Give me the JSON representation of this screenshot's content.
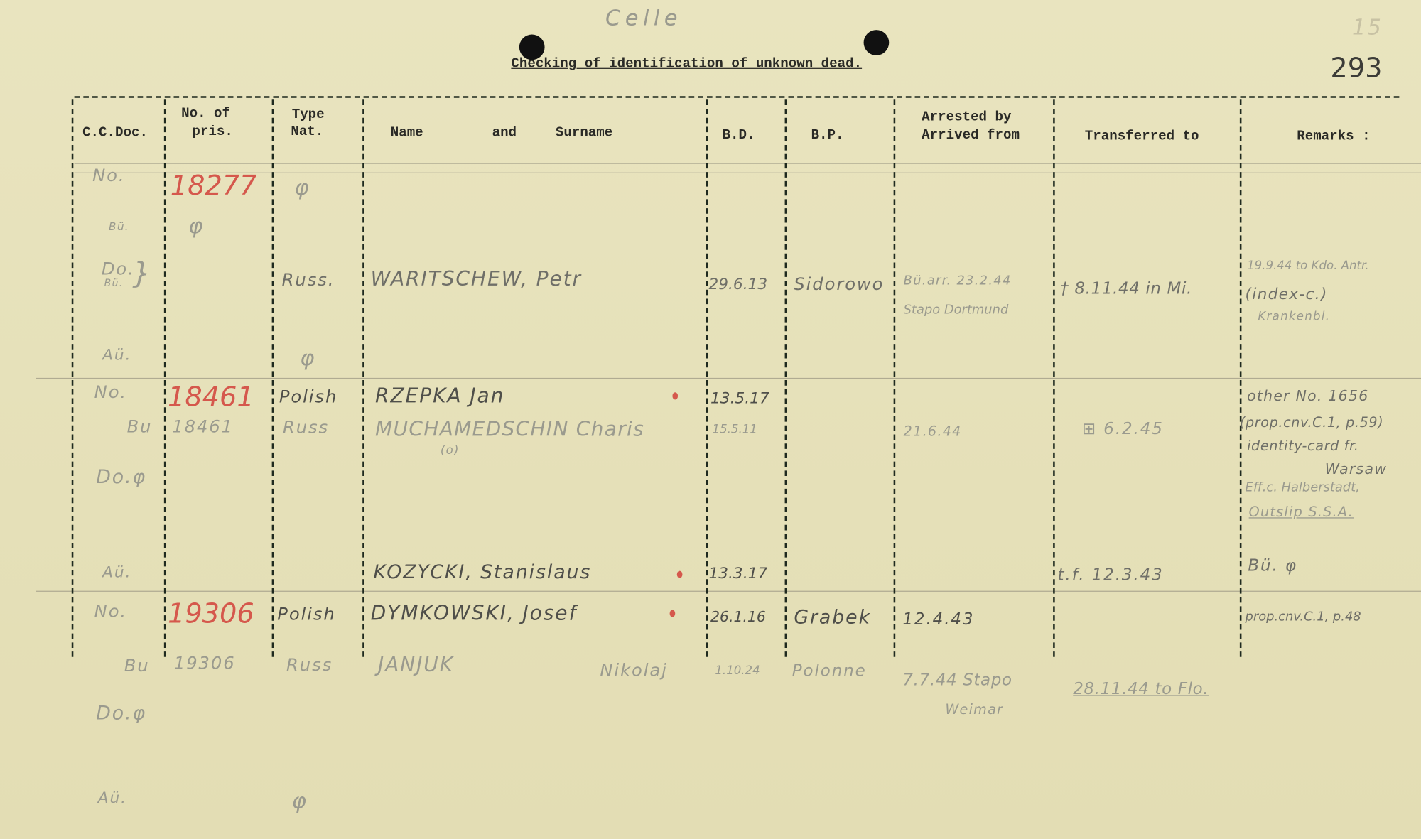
{
  "document": {
    "annotation_top": "Celle",
    "corner_number": "15",
    "page_number": "293",
    "title": "Checking of identification of unknown dead."
  },
  "columns": {
    "cc_doc": "C.C.Doc.",
    "no_of": "No. of",
    "pris": "pris.",
    "type": "Type",
    "nat": "Nat.",
    "name": "Name",
    "and": "and",
    "surname": "Surname",
    "bd": "B.D.",
    "bp": "B.P.",
    "arrested_by": "Arrested by",
    "arrived_from": "Arrived from",
    "transferred_to": "Transferred to",
    "remarks": "Remarks :"
  },
  "entries": [
    {
      "no_label": "No.",
      "no_value": "18277",
      "type_no": "φ",
      "bu_label": "Bü.",
      "bu_value": "φ",
      "do_label": "Do.",
      "do_sub": "Bü.",
      "do_brace": "}",
      "nat": "Russ.",
      "name": "WARITSCHEW, Petr",
      "bd": "29.6.13",
      "bp": "Sidorowo",
      "arrested_1": "Bü.arr. 23.2.44",
      "arrested_2": "Stapo Dortmund",
      "transferred": "† 8.11.44 in Mi.",
      "remarks": [
        "19.9.44 to Kdo. Antr.",
        "(index-c.)",
        "Krankenbl."
      ],
      "au_label": "Aü.",
      "au_value": "φ"
    },
    {
      "no_label": "No.",
      "no_value": "18461",
      "nat": "Polish",
      "name": "RZEPKA Jan",
      "bd": "13.5.17",
      "bu_label": "Bu",
      "bu_value": "18461",
      "bu_nat": "Russ",
      "bu_name": "MUCHAMEDSCHIN Charis",
      "bu_name_note": "(o)",
      "bu_bd": "15.5.11",
      "bu_arrived": "21.6.44",
      "bu_transferred": "⊞ 6.2.45",
      "remarks": [
        "other No. 1656",
        "(prop.cnv.C.1, p.59)",
        "identity-card fr.",
        "Warsaw",
        "Eff.c. Halberstadt,",
        "Outslip S.S.A."
      ],
      "do_label": "Do.φ",
      "au_label": "Aü.",
      "au_name": "KOZYCKI, Stanislaus",
      "au_bd": "13.3.17",
      "au_transferred": "t.f. 12.3.43",
      "au_remarks": "Bü. φ"
    },
    {
      "no_label": "No.",
      "no_value": "19306",
      "nat": "Polish",
      "name": "DYMKOWSKI, Josef",
      "bd": "26.1.16",
      "bp": "Grabek",
      "arrived": "12.4.43",
      "remarks": "prop.cnv.C.1, p.48",
      "bu_label": "Bu",
      "bu_value": "19306",
      "bu_nat": "Russ",
      "bu_name": "JANJUK",
      "bu_firstname": "Nikolaj",
      "bu_bd": "1.10.24",
      "bu_bp": "Polonne",
      "bu_arrived_1": "7.7.44 Stapo",
      "bu_arrived_2": "Weimar",
      "bu_transferred": "28.11.44 to Flo.",
      "do_label": "Do.φ",
      "au_label": "Aü.",
      "au_value": "φ"
    }
  ]
}
